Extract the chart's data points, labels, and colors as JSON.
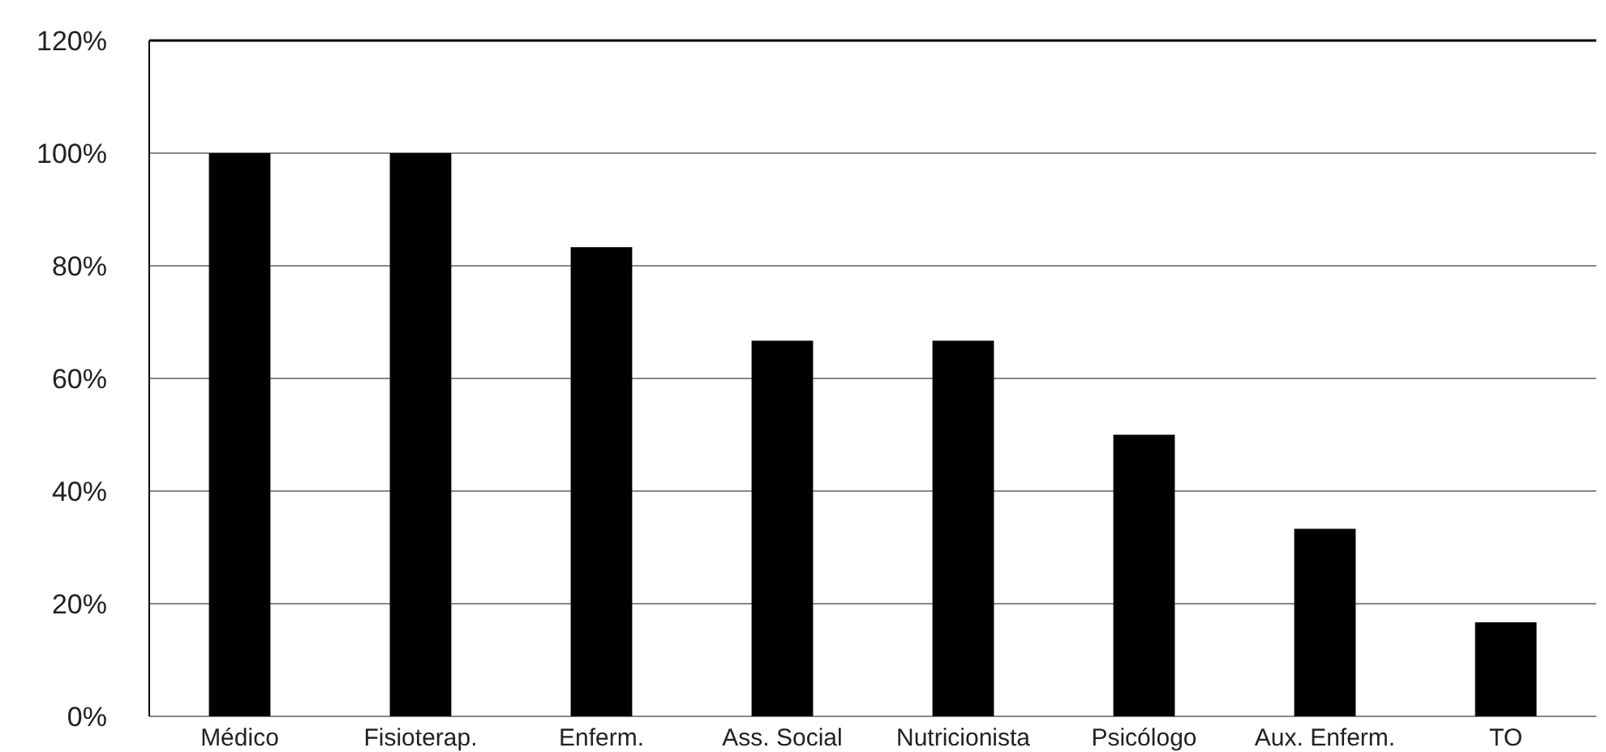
{
  "chart_data": {
    "type": "bar",
    "categories": [
      "Médico",
      "Fisioterap.",
      "Enferm.",
      "Ass. Social",
      "Nutricionista",
      "Psicólogo",
      "Aux. Enferm.",
      "TO"
    ],
    "values": [
      100,
      100,
      83.3,
      66.7,
      66.7,
      50,
      33.3,
      16.7
    ],
    "color": "#000000",
    "ylim": [
      0,
      120
    ],
    "yticks": [
      {
        "value": 0,
        "label": "0%"
      },
      {
        "value": 20,
        "label": "20%"
      },
      {
        "value": 40,
        "label": "40%"
      },
      {
        "value": 60,
        "label": "60%"
      },
      {
        "value": 80,
        "label": "80%"
      },
      {
        "value": 100,
        "label": "100%"
      },
      {
        "value": 120,
        "label": "120%"
      }
    ],
    "grid": "y"
  }
}
